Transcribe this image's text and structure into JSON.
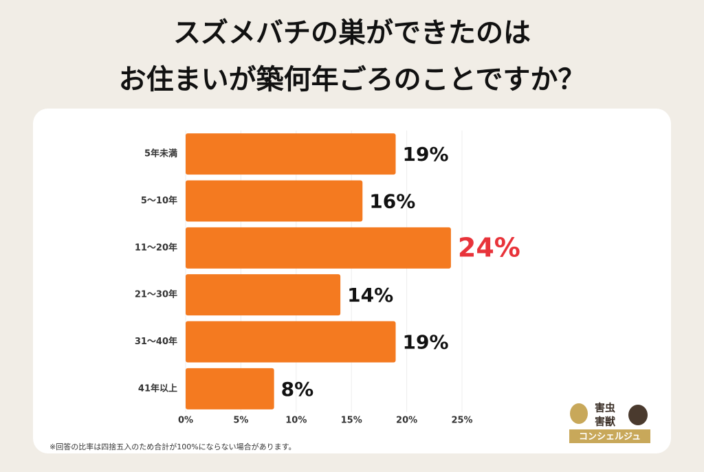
{
  "chart_data": {
    "type": "hbar",
    "title": [
      "スズメバチの巣ができたのは",
      "お住まいが築何年ごろのことですか？"
    ],
    "categories": [
      "5年未満",
      "5〜10年",
      "11〜20年",
      "21〜30年",
      "31〜40年",
      "41年以上"
    ],
    "values": [
      19,
      16,
      24,
      14,
      19,
      8
    ],
    "value_labels": [
      "19%",
      "16%",
      "24%",
      "14%",
      "19%",
      "8%"
    ],
    "value_label_colors": [
      "#111111",
      "#111111",
      "#e8333a",
      "#111111",
      "#111111",
      "#111111"
    ],
    "color": "#f47a20",
    "xlim": [
      0,
      25
    ],
    "xticks": [
      {
        "value": 0,
        "label": "0%"
      },
      {
        "value": 5,
        "label": "5%"
      },
      {
        "value": 10,
        "label": "10%"
      },
      {
        "value": 15,
        "label": "15%"
      },
      {
        "value": 20,
        "label": "20%"
      },
      {
        "value": 25,
        "label": "25%"
      }
    ],
    "grid": true,
    "footnote": "※回答の比率は四捨五入のため合計が100%にならない場合があります。"
  },
  "logo": {
    "line1": "害虫",
    "line2": "害獣",
    "line3": "コンシェルジュ"
  }
}
